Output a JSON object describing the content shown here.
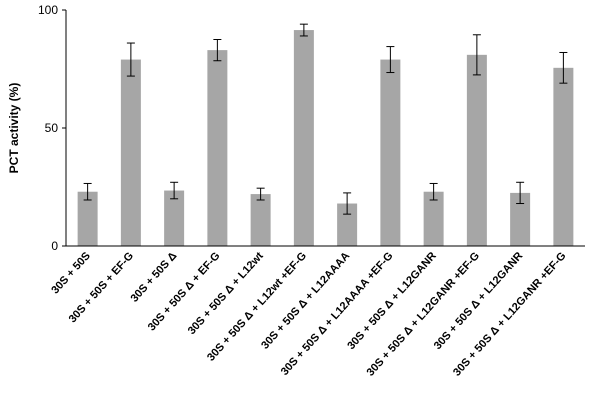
{
  "chart_data": {
    "type": "bar",
    "title": "",
    "xlabel": "",
    "ylabel": "PCT activity (%)",
    "ylim": [
      0,
      100
    ],
    "yticks": [
      0,
      50,
      100
    ],
    "grid": false,
    "bar_color": "#a6a6a6",
    "categories": [
      "30S + 50S",
      "30S + 50S + EF-G",
      "30S + 50S Δ",
      "30S + 50S Δ + EF-G",
      "30S + 50S Δ + L12wt",
      "30S + 50S Δ + L12wt +EF-G",
      "30S + 50S Δ + L12AAAA",
      "30S + 50S Δ + L12AAAA +EF-G",
      "30S + 50S Δ + L12GANR",
      "30S + 50S Δ + L12GANR +EF-G",
      "30S + 50S Δ + L12GANR",
      "30S + 50S Δ + L12GANR +EF-G"
    ],
    "values": [
      23,
      79,
      23.5,
      83,
      22,
      91.5,
      18,
      79,
      23,
      81,
      22.5,
      75.5
    ],
    "errors": [
      3.5,
      7,
      3.5,
      4.5,
      2.5,
      2.5,
      4.5,
      5.5,
      3.5,
      8.5,
      4.5,
      6.5
    ]
  }
}
